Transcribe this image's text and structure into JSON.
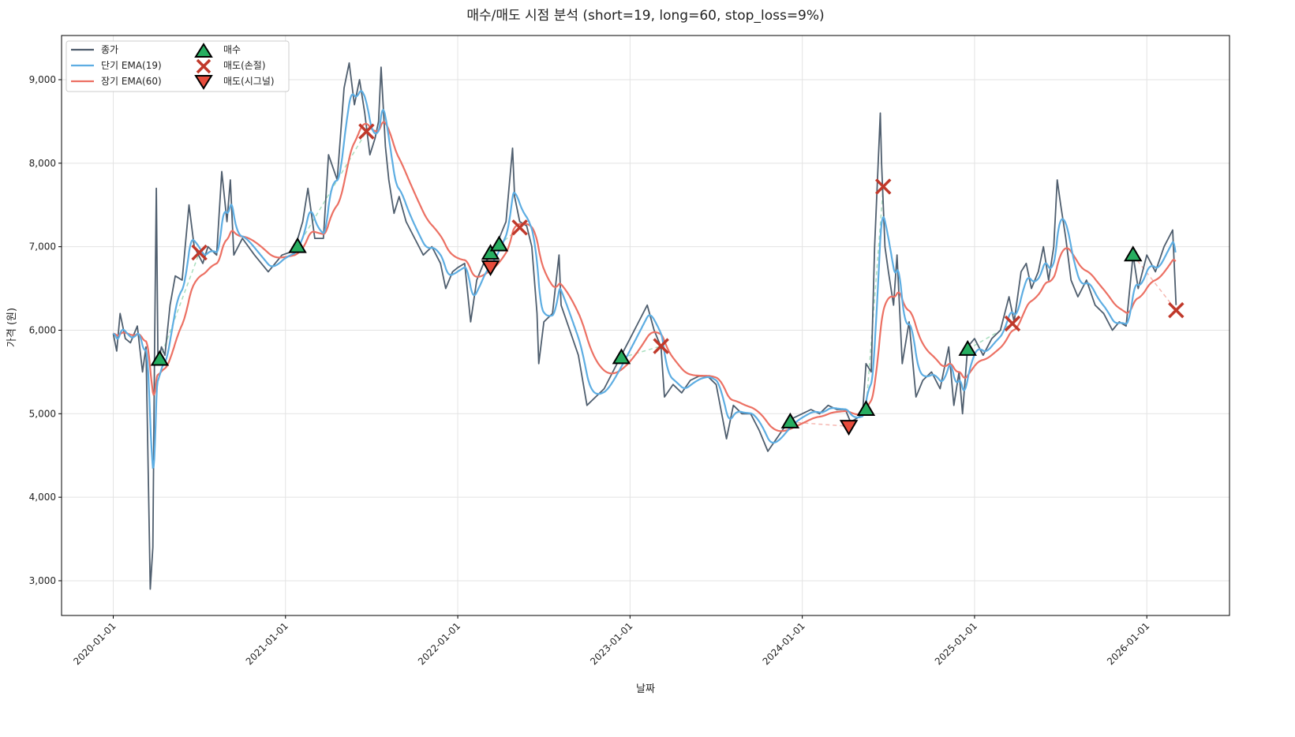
{
  "chart_data": {
    "type": "line",
    "title": "매수/매도 시점 분석 (short=19, long=60, stop_loss=9%)",
    "xlabel": "날짜",
    "ylabel": "가격 (원)",
    "xlim": [
      2019.7,
      2026.48
    ],
    "ylim": [
      2584,
      9529
    ],
    "grid": true,
    "legend_position": "top-left",
    "x_ticks": [
      {
        "value": 2020,
        "label": "2020-01-01"
      },
      {
        "value": 2021,
        "label": "2021-01-01"
      },
      {
        "value": 2022,
        "label": "2022-01-01"
      },
      {
        "value": 2023,
        "label": "2023-01-01"
      },
      {
        "value": 2024,
        "label": "2024-01-01"
      },
      {
        "value": 2025,
        "label": "2025-01-01"
      },
      {
        "value": 2026,
        "label": "2026-01-01"
      }
    ],
    "y_ticks": [
      {
        "value": 3000,
        "label": "3,000"
      },
      {
        "value": 4000,
        "label": "4,000"
      },
      {
        "value": 5000,
        "label": "5,000"
      },
      {
        "value": 6000,
        "label": "6,000"
      },
      {
        "value": 7000,
        "label": "7,000"
      },
      {
        "value": 8000,
        "label": "8,000"
      },
      {
        "value": 9000,
        "label": "9,000"
      }
    ],
    "legend": {
      "close": "종가",
      "ema_short": "단기 EMA(19)",
      "ema_long": "장기 EMA(60)",
      "buy": "매수",
      "sell_stop": "매도(손절)",
      "sell_signal": "매도(시그널)"
    },
    "colors": {
      "close": "#4f5e6e",
      "ema_short": "#5dade2",
      "ema_long": "#ec7063",
      "buy": "#27ae60",
      "sell_stop": "#c0392b",
      "sell_signal": "#e74c3c"
    },
    "ema_periods": {
      "short": 19,
      "long": 60
    },
    "close_series": [
      [
        2020.0,
        5960
      ],
      [
        2020.02,
        5750
      ],
      [
        2020.04,
        6200
      ],
      [
        2020.07,
        5900
      ],
      [
        2020.1,
        5850
      ],
      [
        2020.14,
        6050
      ],
      [
        2020.17,
        5500
      ],
      [
        2020.19,
        5800
      ],
      [
        2020.205,
        4100
      ],
      [
        2020.215,
        2900
      ],
      [
        2020.23,
        3400
      ],
      [
        2020.24,
        5800
      ],
      [
        2020.25,
        7700
      ],
      [
        2020.26,
        5600
      ],
      [
        2020.28,
        5800
      ],
      [
        2020.3,
        5700
      ],
      [
        2020.33,
        6300
      ],
      [
        2020.36,
        6650
      ],
      [
        2020.4,
        6600
      ],
      [
        2020.44,
        7500
      ],
      [
        2020.47,
        7000
      ],
      [
        2020.52,
        6800
      ],
      [
        2020.55,
        7000
      ],
      [
        2020.6,
        6900
      ],
      [
        2020.63,
        7900
      ],
      [
        2020.66,
        7300
      ],
      [
        2020.68,
        7800
      ],
      [
        2020.7,
        6900
      ],
      [
        2020.75,
        7100
      ],
      [
        2020.82,
        6900
      ],
      [
        2020.9,
        6700
      ],
      [
        2020.98,
        6900
      ],
      [
        2021.05,
        6950
      ],
      [
        2021.1,
        7300
      ],
      [
        2021.13,
        7700
      ],
      [
        2021.17,
        7100
      ],
      [
        2021.22,
        7100
      ],
      [
        2021.25,
        8100
      ],
      [
        2021.3,
        7800
      ],
      [
        2021.34,
        8900
      ],
      [
        2021.37,
        9200
      ],
      [
        2021.4,
        8700
      ],
      [
        2021.43,
        9000
      ],
      [
        2021.46,
        8600
      ],
      [
        2021.49,
        8100
      ],
      [
        2021.52,
        8300
      ],
      [
        2021.54,
        8500
      ],
      [
        2021.555,
        9150
      ],
      [
        2021.58,
        8200
      ],
      [
        2021.6,
        7800
      ],
      [
        2021.63,
        7400
      ],
      [
        2021.66,
        7600
      ],
      [
        2021.7,
        7300
      ],
      [
        2021.75,
        7100
      ],
      [
        2021.8,
        6900
      ],
      [
        2021.85,
        7000
      ],
      [
        2021.9,
        6800
      ],
      [
        2021.93,
        6500
      ],
      [
        2021.97,
        6700
      ],
      [
        2022.0,
        6750
      ],
      [
        2022.04,
        6800
      ],
      [
        2022.075,
        6100
      ],
      [
        2022.11,
        6600
      ],
      [
        2022.15,
        6800
      ],
      [
        2022.2,
        6900
      ],
      [
        2022.24,
        7100
      ],
      [
        2022.28,
        7300
      ],
      [
        2022.318,
        8180
      ],
      [
        2022.33,
        7600
      ],
      [
        2022.36,
        7300
      ],
      [
        2022.4,
        7250
      ],
      [
        2022.43,
        7000
      ],
      [
        2022.46,
        6200
      ],
      [
        2022.47,
        5600
      ],
      [
        2022.5,
        6100
      ],
      [
        2022.55,
        6200
      ],
      [
        2022.588,
        6900
      ],
      [
        2022.6,
        6300
      ],
      [
        2022.65,
        6000
      ],
      [
        2022.7,
        5700
      ],
      [
        2022.75,
        5100
      ],
      [
        2022.8,
        5200
      ],
      [
        2022.85,
        5300
      ],
      [
        2022.9,
        5500
      ],
      [
        2022.95,
        5700
      ],
      [
        2023.0,
        5900
      ],
      [
        2023.05,
        6100
      ],
      [
        2023.1,
        6300
      ],
      [
        2023.14,
        6000
      ],
      [
        2023.18,
        5800
      ],
      [
        2023.2,
        5200
      ],
      [
        2023.25,
        5350
      ],
      [
        2023.3,
        5250
      ],
      [
        2023.35,
        5400
      ],
      [
        2023.4,
        5450
      ],
      [
        2023.45,
        5450
      ],
      [
        2023.5,
        5350
      ],
      [
        2023.56,
        4700
      ],
      [
        2023.6,
        5100
      ],
      [
        2023.65,
        5000
      ],
      [
        2023.7,
        5000
      ],
      [
        2023.75,
        4800
      ],
      [
        2023.8,
        4550
      ],
      [
        2023.85,
        4700
      ],
      [
        2023.9,
        4850
      ],
      [
        2023.95,
        4950
      ],
      [
        2024.0,
        5000
      ],
      [
        2024.05,
        5050
      ],
      [
        2024.1,
        5000
      ],
      [
        2024.15,
        5100
      ],
      [
        2024.2,
        5050
      ],
      [
        2024.25,
        5050
      ],
      [
        2024.28,
        4900
      ],
      [
        2024.32,
        4950
      ],
      [
        2024.35,
        5000
      ],
      [
        2024.37,
        5600
      ],
      [
        2024.4,
        5500
      ],
      [
        2024.42,
        7000
      ],
      [
        2024.453,
        8600
      ],
      [
        2024.46,
        8000
      ],
      [
        2024.48,
        7000
      ],
      [
        2024.5,
        6700
      ],
      [
        2024.53,
        6300
      ],
      [
        2024.55,
        6900
      ],
      [
        2024.58,
        5600
      ],
      [
        2024.62,
        6100
      ],
      [
        2024.66,
        5200
      ],
      [
        2024.7,
        5400
      ],
      [
        2024.75,
        5500
      ],
      [
        2024.8,
        5300
      ],
      [
        2024.85,
        5800
      ],
      [
        2024.88,
        5100
      ],
      [
        2024.91,
        5500
      ],
      [
        2024.93,
        5000
      ],
      [
        2024.96,
        5800
      ],
      [
        2025.0,
        5900
      ],
      [
        2025.05,
        5700
      ],
      [
        2025.1,
        5900
      ],
      [
        2025.15,
        6000
      ],
      [
        2025.2,
        6400
      ],
      [
        2025.23,
        6100
      ],
      [
        2025.27,
        6700
      ],
      [
        2025.3,
        6800
      ],
      [
        2025.33,
        6500
      ],
      [
        2025.37,
        6700
      ],
      [
        2025.4,
        7000
      ],
      [
        2025.43,
        6600
      ],
      [
        2025.46,
        7000
      ],
      [
        2025.48,
        7800
      ],
      [
        2025.5,
        7500
      ],
      [
        2025.53,
        7100
      ],
      [
        2025.56,
        6600
      ],
      [
        2025.6,
        6400
      ],
      [
        2025.65,
        6600
      ],
      [
        2025.7,
        6300
      ],
      [
        2025.75,
        6200
      ],
      [
        2025.8,
        6000
      ],
      [
        2025.84,
        6100
      ],
      [
        2025.88,
        6050
      ],
      [
        2025.92,
        6900
      ],
      [
        2025.95,
        6500
      ],
      [
        2026.0,
        6900
      ],
      [
        2026.05,
        6700
      ],
      [
        2026.1,
        7000
      ],
      [
        2026.15,
        7200
      ],
      [
        2026.17,
        6300
      ]
    ],
    "buy_points": [
      [
        2020.27,
        5650
      ],
      [
        2021.07,
        7000
      ],
      [
        2022.19,
        6920
      ],
      [
        2022.24,
        7020
      ],
      [
        2022.95,
        5670
      ],
      [
        2023.93,
        4900
      ],
      [
        2024.37,
        5050
      ],
      [
        2024.96,
        5770
      ],
      [
        2025.92,
        6900
      ]
    ],
    "sell_stop_points": [
      [
        2020.5,
        6930
      ],
      [
        2021.47,
        8380
      ],
      [
        2022.36,
        7230
      ],
      [
        2023.18,
        5810
      ],
      [
        2024.47,
        7720
      ],
      [
        2025.22,
        6080
      ],
      [
        2026.17,
        6240
      ]
    ],
    "sell_signal_points": [
      [
        2022.19,
        6760
      ],
      [
        2024.27,
        4850
      ]
    ],
    "trades": [
      {
        "buy": [
          2020.27,
          5650
        ],
        "sell": [
          2020.5,
          6930
        ],
        "type": "stop"
      },
      {
        "buy": [
          2021.07,
          7000
        ],
        "sell": [
          2021.47,
          8380
        ],
        "type": "stop"
      },
      {
        "buy": [
          2022.19,
          6920
        ],
        "sell": [
          2022.19,
          6760
        ],
        "type": "signal"
      },
      {
        "buy": [
          2022.24,
          7020
        ],
        "sell": [
          2022.36,
          7230
        ],
        "type": "stop"
      },
      {
        "buy": [
          2022.95,
          5670
        ],
        "sell": [
          2023.18,
          5810
        ],
        "type": "stop"
      },
      {
        "buy": [
          2023.93,
          4900
        ],
        "sell": [
          2024.27,
          4850
        ],
        "type": "signal"
      },
      {
        "buy": [
          2024.37,
          5050
        ],
        "sell": [
          2024.47,
          7720
        ],
        "type": "stop"
      },
      {
        "buy": [
          2024.96,
          5770
        ],
        "sell": [
          2025.22,
          6080
        ],
        "type": "stop"
      },
      {
        "buy": [
          2025.92,
          6900
        ],
        "sell": [
          2026.17,
          6240
        ],
        "type": "stop"
      }
    ]
  }
}
